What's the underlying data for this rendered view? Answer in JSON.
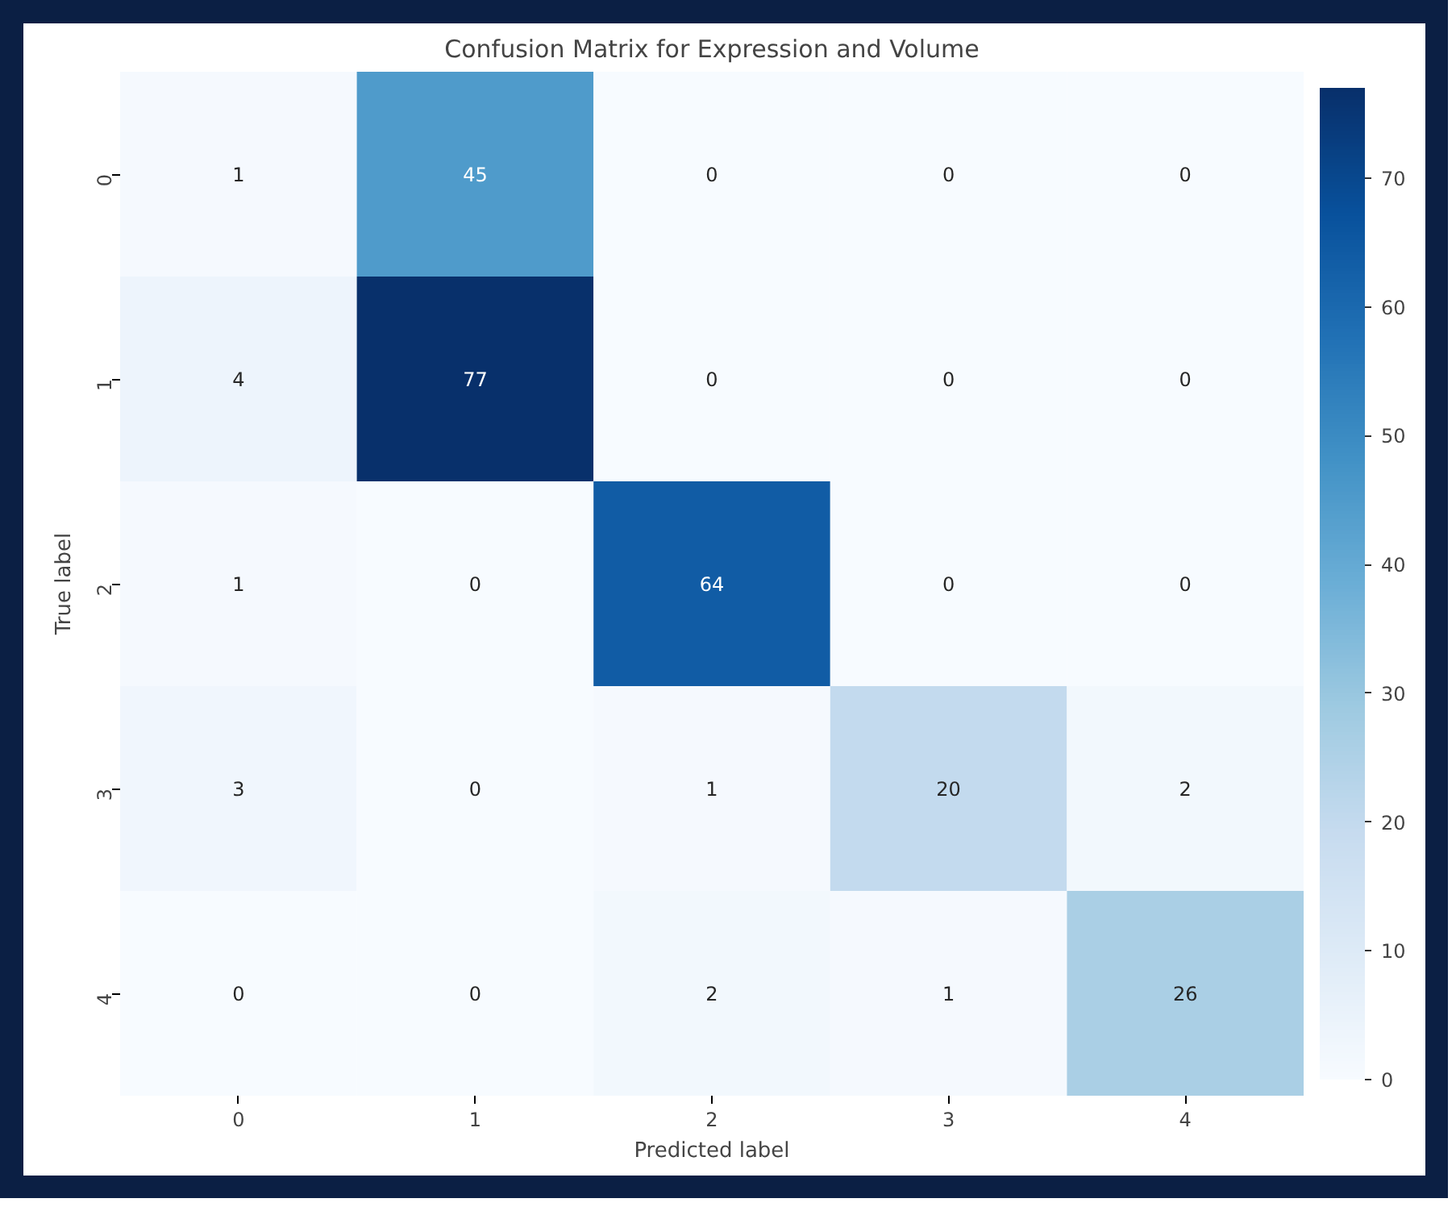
{
  "chart_data": {
    "type": "heatmap",
    "title": "Confusion Matrix for Expression and Volume",
    "xlabel": "Predicted label",
    "ylabel": "True label",
    "categories": [
      "0",
      "1",
      "2",
      "3",
      "4"
    ],
    "y_categories": [
      "0",
      "1",
      "2",
      "3",
      "4"
    ],
    "cells": [
      [
        1,
        45,
        0,
        0,
        0
      ],
      [
        4,
        77,
        0,
        0,
        0
      ],
      [
        1,
        0,
        64,
        0,
        0
      ],
      [
        3,
        0,
        1,
        20,
        2
      ],
      [
        0,
        0,
        2,
        1,
        26
      ]
    ],
    "clim": [
      0,
      77
    ],
    "cticks": [
      0,
      10,
      20,
      30,
      40,
      50,
      60,
      70
    ],
    "data_labels": true
  }
}
